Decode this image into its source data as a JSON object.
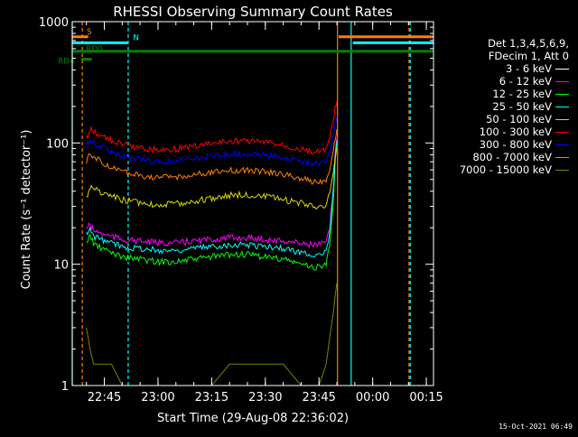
{
  "header": {
    "title": "RHESSI Observing Summary Count Rates"
  },
  "footer": {
    "timestamp": "15-Oct-2021 06:49"
  },
  "legend": {
    "header_lines": [
      "Det 1,3,4,5,6,9,",
      "FDecim 1, Att 0"
    ],
    "items": [
      {
        "label": "3 - 6 keV",
        "color": "#000000"
      },
      {
        "label": "6 - 12 keV",
        "color": "#ff00ff"
      },
      {
        "label": "12 - 25 keV",
        "color": "#00ff00"
      },
      {
        "label": "25 - 50 keV",
        "color": "#00ffff"
      },
      {
        "label": "50 - 100 keV",
        "color": "#d8d800"
      },
      {
        "label": "100 - 300 keV",
        "color": "#ff0000"
      },
      {
        "label": "300 - 800 keV",
        "color": "#0000ff"
      },
      {
        "label": "800 - 7000 keV",
        "color": "#ff8000"
      },
      {
        "label": "7000 - 15000 keV",
        "color": "#808000"
      }
    ]
  },
  "chart_data": {
    "type": "line",
    "title": "RHESSI Observing Summary Count Rates",
    "xlabel": "Start Time (29-Aug-08 22:36:02)",
    "ylabel": "Count Rate (s⁻¹ detector⁻¹)",
    "yscale": "log",
    "ylim": [
      1,
      1000
    ],
    "xlim": [
      "22:36:02",
      "00:17:00"
    ],
    "y_ticks": [
      "1",
      "10",
      "100",
      "1000"
    ],
    "x_ticks": [
      "22:45",
      "23:00",
      "23:15",
      "23:30",
      "23:45",
      "00:00",
      "00:15"
    ],
    "flags": [
      {
        "name": "S",
        "color": "#ff8000",
        "level": 750,
        "segments": [
          [
            "22:36:02",
            "22:40:30"
          ],
          [
            "23:50:30",
            "00:17:00"
          ]
        ]
      },
      {
        "name": "N",
        "color": "#00ffff",
        "level": 670,
        "segments": [
          [
            "22:36:02",
            "22:51:30"
          ],
          [
            "23:54:30",
            "00:17:00"
          ]
        ]
      },
      {
        "name": "RD0",
        "color": "#008000",
        "level": 570,
        "segments": [
          [
            "22:36:02",
            "00:17:00"
          ]
        ]
      },
      {
        "name": "RD4",
        "color": "#008000",
        "level": 490,
        "segments": [
          [
            "22:38:30",
            "22:41:30"
          ]
        ]
      }
    ],
    "vertical_lines": [
      {
        "time": "22:36:02",
        "color": "#00ffff",
        "style": "solid"
      },
      {
        "time": "22:38:50",
        "color": "#ff8000",
        "style": "dashed"
      },
      {
        "time": "22:51:40",
        "color": "#00ffff",
        "style": "dashed"
      },
      {
        "time": "23:50:10",
        "color": "#ff8000",
        "style": "solid"
      },
      {
        "time": "23:54:00",
        "color": "#00ffff",
        "style": "solid"
      },
      {
        "time": "00:10:10",
        "color": "#ff8000",
        "style": "dashed"
      },
      {
        "time": "00:10:30",
        "color": "#00ffff",
        "style": "dashed"
      }
    ],
    "series": [
      {
        "name": "3 - 6 keV",
        "color": "#000000",
        "x": [
          "22:40:00",
          "22:41:00",
          "22:42:00",
          "22:44:00",
          "22:47:00",
          "22:50:00",
          "22:55:00",
          "23:00:00",
          "23:05:00",
          "23:10:00",
          "23:15:00",
          "23:20:00",
          "23:25:00",
          "23:30:00",
          "23:35:00",
          "23:40:00",
          "23:43:00",
          "23:45:00",
          "23:47:00",
          "23:48:00",
          "23:49:00",
          "23:49:30",
          "23:50:00"
        ],
        "y": [
          14,
          16,
          14,
          12,
          11,
          10,
          9.5,
          9,
          8.5,
          9,
          9.5,
          10,
          10,
          9.5,
          9,
          8,
          7.5,
          7,
          8,
          12,
          30,
          60,
          90
        ]
      },
      {
        "name": "6 - 12 keV",
        "color": "#ff00ff",
        "x": [
          "22:40:00",
          "22:41:00",
          "22:42:00",
          "22:44:00",
          "22:47:00",
          "22:50:00",
          "22:55:00",
          "23:00:00",
          "23:05:00",
          "23:10:00",
          "23:15:00",
          "23:20:00",
          "23:25:00",
          "23:30:00",
          "23:35:00",
          "23:40:00",
          "23:43:00",
          "23:45:00",
          "23:47:00",
          "23:48:00",
          "23:49:00",
          "23:49:30",
          "23:50:00"
        ],
        "y": [
          20,
          21,
          19,
          18,
          17,
          16,
          15.5,
          15,
          15,
          15.5,
          16,
          16.5,
          16.5,
          16,
          15.5,
          15,
          14.5,
          14.5,
          15,
          20,
          45,
          80,
          110
        ]
      },
      {
        "name": "12 - 25 keV",
        "color": "#00ff00",
        "x": [
          "22:40:00",
          "22:41:00",
          "22:42:00",
          "22:44:00",
          "22:47:00",
          "22:50:00",
          "22:55:00",
          "23:00:00",
          "23:05:00",
          "23:10:00",
          "23:15:00",
          "23:20:00",
          "23:25:00",
          "23:30:00",
          "23:35:00",
          "23:40:00",
          "23:43:00",
          "23:45:00",
          "23:47:00",
          "23:48:00",
          "23:49:00",
          "23:49:30",
          "23:50:00"
        ],
        "y": [
          15,
          17,
          15,
          13.5,
          12.5,
          11.5,
          11,
          10.5,
          10.5,
          11,
          11.5,
          12,
          12,
          11.5,
          11,
          10,
          9.5,
          9.5,
          10,
          15,
          35,
          70,
          100
        ]
      },
      {
        "name": "25 - 50 keV",
        "color": "#00ffff",
        "x": [
          "22:40:00",
          "22:41:00",
          "22:42:00",
          "22:44:00",
          "22:47:00",
          "22:50:00",
          "22:55:00",
          "23:00:00",
          "23:05:00",
          "23:10:00",
          "23:15:00",
          "23:20:00",
          "23:25:00",
          "23:30:00",
          "23:35:00",
          "23:40:00",
          "23:43:00",
          "23:45:00",
          "23:47:00",
          "23:48:00",
          "23:49:00",
          "23:49:30",
          "23:50:00"
        ],
        "y": [
          18,
          19,
          17,
          16,
          15,
          14,
          13.5,
          13,
          13,
          13.5,
          14,
          14.5,
          14.5,
          14,
          13.5,
          12.5,
          12,
          12,
          12.5,
          18,
          40,
          75,
          105
        ]
      },
      {
        "name": "50 - 100 keV",
        "color": "#d8d800",
        "x": [
          "22:40:00",
          "22:41:00",
          "22:42:00",
          "22:44:00",
          "22:47:00",
          "22:50:00",
          "22:55:00",
          "23:00:00",
          "23:05:00",
          "23:10:00",
          "23:15:00",
          "23:20:00",
          "23:25:00",
          "23:30:00",
          "23:35:00",
          "23:40:00",
          "23:43:00",
          "23:45:00",
          "23:47:00",
          "23:48:00",
          "23:49:00",
          "23:49:30",
          "23:50:00"
        ],
        "y": [
          35,
          44,
          42,
          39,
          36,
          34,
          32,
          31,
          31.5,
          33,
          35,
          37,
          37.5,
          36,
          34,
          32,
          30.5,
          30,
          31,
          38,
          55,
          75,
          90
        ]
      },
      {
        "name": "100 - 300 keV",
        "color": "#ff0000",
        "x": [
          "22:40:00",
          "22:41:00",
          "22:42:00",
          "22:44:00",
          "22:47:00",
          "22:50:00",
          "22:55:00",
          "23:00:00",
          "23:05:00",
          "23:10:00",
          "23:15:00",
          "23:20:00",
          "23:25:00",
          "23:30:00",
          "23:35:00",
          "23:40:00",
          "23:43:00",
          "23:45:00",
          "23:47:00",
          "23:48:00",
          "23:49:00",
          "23:49:30",
          "23:50:00"
        ],
        "y": [
          110,
          130,
          125,
          115,
          105,
          97,
          91,
          88,
          89,
          94,
          99,
          103,
          104,
          101,
          96,
          89,
          85,
          84,
          88,
          110,
          150,
          190,
          220
        ]
      },
      {
        "name": "300 - 800 keV",
        "color": "#0000ff",
        "x": [
          "22:40:00",
          "22:41:00",
          "22:42:00",
          "22:44:00",
          "22:47:00",
          "22:50:00",
          "22:55:00",
          "23:00:00",
          "23:05:00",
          "23:10:00",
          "23:15:00",
          "23:20:00",
          "23:25:00",
          "23:30:00",
          "23:35:00",
          "23:40:00",
          "23:43:00",
          "23:45:00",
          "23:47:00",
          "23:48:00",
          "23:49:00",
          "23:49:30",
          "23:50:00"
        ],
        "y": [
          95,
          107,
          101,
          93,
          85,
          78,
          73,
          70,
          71,
          74,
          78,
          81,
          82,
          80,
          76,
          71,
          68,
          67,
          70,
          88,
          115,
          145,
          165
        ]
      },
      {
        "name": "800 - 7000 keV",
        "color": "#ff8000",
        "x": [
          "22:40:00",
          "22:41:00",
          "22:42:00",
          "22:44:00",
          "22:47:00",
          "22:50:00",
          "22:55:00",
          "23:00:00",
          "23:05:00",
          "23:10:00",
          "23:15:00",
          "23:20:00",
          "23:25:00",
          "23:30:00",
          "23:35:00",
          "23:40:00",
          "23:43:00",
          "23:45:00",
          "23:47:00",
          "23:48:00",
          "23:49:00",
          "23:49:30",
          "23:50:00"
        ],
        "y": [
          70,
          81,
          77,
          70,
          63,
          58,
          54,
          52,
          52.5,
          54.5,
          57,
          59,
          59.5,
          58,
          55,
          51,
          48.5,
          48,
          50,
          62,
          85,
          110,
          130
        ]
      },
      {
        "name": "7000 - 15000 keV",
        "color": "#808000",
        "x": [
          "22:40:00",
          "22:41:00",
          "22:42:00",
          "22:44:00",
          "22:47:00",
          "22:50:00",
          "22:55:00",
          "23:00:00",
          "23:05:00",
          "23:10:00",
          "23:15:00",
          "23:20:00",
          "23:25:00",
          "23:30:00",
          "23:35:00",
          "23:40:00",
          "23:43:00",
          "23:45:00",
          "23:47:00",
          "23:48:00",
          "23:49:00",
          "23:49:30",
          "23:50:00"
        ],
        "y": [
          3,
          2,
          1.5,
          1.5,
          1.5,
          1,
          1,
          1,
          1,
          1,
          1,
          1.5,
          1.5,
          1.5,
          1.5,
          1,
          1,
          1,
          1.5,
          2.5,
          4,
          5.5,
          7
        ]
      }
    ]
  }
}
